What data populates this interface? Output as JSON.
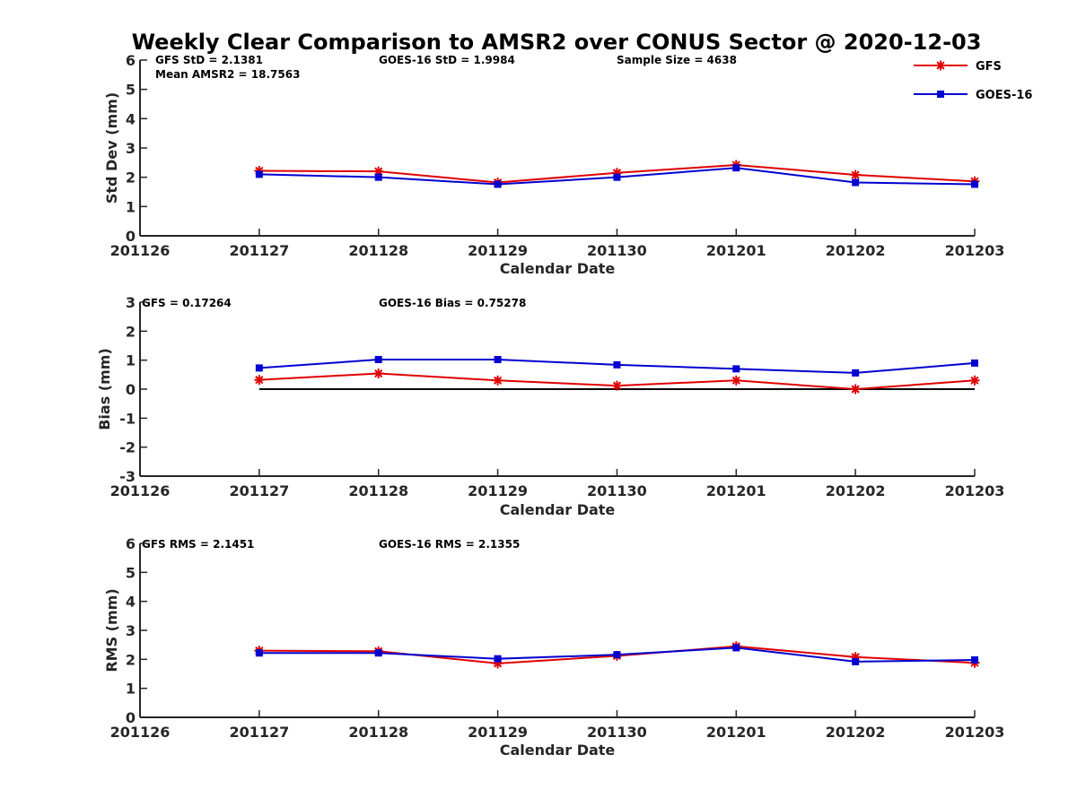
{
  "chart_data": {
    "title": "Weekly Clear Comparison to AMSR2 over CONUS Sector @ 2020-12-03",
    "legend": {
      "placement": "top-right",
      "entries": [
        {
          "name": "GFS",
          "color": "#e00000",
          "marker": "asterisk"
        },
        {
          "name": "GOES-16",
          "color": "#0000d0",
          "marker": "square"
        }
      ]
    },
    "panels": [
      {
        "type": "line",
        "ylabel": "Std Dev (mm)",
        "xlabel": "Calendar Date",
        "ylim": [
          0,
          6
        ],
        "yticks": [
          "0",
          "1",
          "2",
          "3",
          "4",
          "5",
          "6"
        ],
        "categories": [
          "201126",
          "201127",
          "201128",
          "201129",
          "201130",
          "201201",
          "201202",
          "201203"
        ],
        "reference_line": null,
        "annotations": [
          {
            "text": "GFS StD = 2.1381"
          },
          {
            "text": "Mean AMSR2 = 18.7563"
          },
          {
            "text": "GOES-16 StD = 1.9984"
          },
          {
            "text": "Sample Size = 4638"
          }
        ],
        "series": [
          {
            "name": "GFS",
            "color": "#e00000",
            "marker": "asterisk",
            "x": [
              1,
              2,
              3,
              4,
              5,
              6,
              7
            ],
            "values": [
              2.22,
              2.2,
              1.82,
              2.15,
              2.42,
              2.08,
              1.86
            ]
          },
          {
            "name": "GOES-16",
            "color": "#0000d0",
            "marker": "square",
            "x": [
              1,
              2,
              3,
              4,
              5,
              6,
              7
            ],
            "values": [
              2.1,
              2.0,
              1.76,
              2.0,
              2.32,
              1.82,
              1.76
            ]
          }
        ]
      },
      {
        "type": "line",
        "ylabel": "Bias (mm)",
        "xlabel": "Calendar Date",
        "ylim": [
          -3,
          3
        ],
        "yticks": [
          "-3",
          "-2",
          "-1",
          "0",
          "1",
          "2",
          "3"
        ],
        "categories": [
          "201126",
          "201127",
          "201128",
          "201129",
          "201130",
          "201201",
          "201202",
          "201203"
        ],
        "reference_line": {
          "y": 0,
          "x_from": 1,
          "x_to": 7,
          "color": "#000000"
        },
        "annotations": [
          {
            "text": "GFS = 0.17264"
          },
          {
            "text": "GOES-16 Bias  = 0.75278"
          }
        ],
        "series": [
          {
            "name": "GFS",
            "color": "#e00000",
            "marker": "asterisk",
            "x": [
              1,
              2,
              3,
              4,
              5,
              6,
              7
            ],
            "values": [
              0.32,
              0.54,
              0.3,
              0.12,
              0.3,
              0.0,
              0.3
            ]
          },
          {
            "name": "GOES-16",
            "color": "#0000d0",
            "marker": "square",
            "x": [
              1,
              2,
              3,
              4,
              5,
              6,
              7
            ],
            "values": [
              0.73,
              1.02,
              1.02,
              0.84,
              0.7,
              0.56,
              0.9
            ]
          }
        ]
      },
      {
        "type": "line",
        "ylabel": "RMS (mm)",
        "xlabel": "Calendar Date",
        "ylim": [
          0,
          6
        ],
        "yticks": [
          "0",
          "1",
          "2",
          "3",
          "4",
          "5",
          "6"
        ],
        "categories": [
          "201126",
          "201127",
          "201128",
          "201129",
          "201130",
          "201201",
          "201202",
          "201203"
        ],
        "reference_line": null,
        "annotations": [
          {
            "text": "GFS RMS = 2.1451"
          },
          {
            "text": "GOES-16 RMS = 2.1355"
          }
        ],
        "series": [
          {
            "name": "GFS",
            "color": "#e00000",
            "marker": "asterisk",
            "x": [
              1,
              2,
              3,
              4,
              5,
              6,
              7
            ],
            "values": [
              2.3,
              2.28,
              1.86,
              2.12,
              2.45,
              2.08,
              1.88
            ]
          },
          {
            "name": "GOES-16",
            "color": "#0000d0",
            "marker": "square",
            "x": [
              1,
              2,
              3,
              4,
              5,
              6,
              7
            ],
            "values": [
              2.22,
              2.22,
              2.02,
              2.16,
              2.4,
              1.92,
              1.98
            ]
          }
        ]
      }
    ]
  }
}
